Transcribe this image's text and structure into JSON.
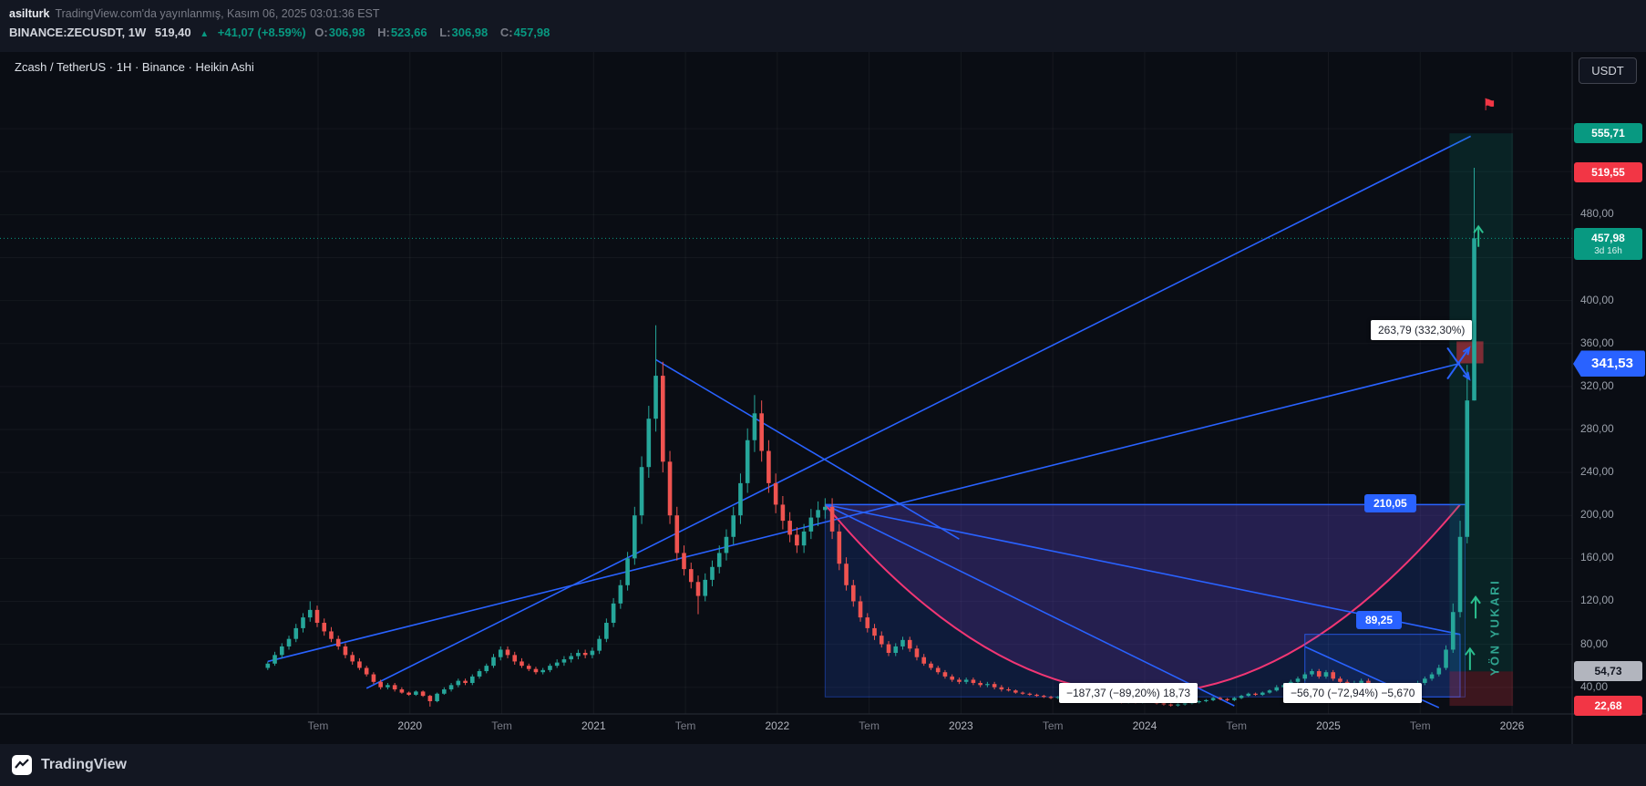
{
  "header": {
    "author": "asilturk",
    "published_text": "TradingView.com'da yayınlanmış, Kasım 06, 2025 03:01:36 EST",
    "symbol": "BINANCE:ZECUSDT, 1W",
    "last_price": "519,40",
    "up_arrow": "▲",
    "change_text": "+41,07 (+8.59%)",
    "ohlc": {
      "o_label": "O:",
      "o": "306,98",
      "h_label": "H:",
      "h": "523,66",
      "l_label": "L:",
      "l": "306,98",
      "c_label": "C:",
      "c": "457,98"
    }
  },
  "legend_title": "Zcash / TetherUS · 1H · Binance · Heikin Ashi",
  "currency_button": "USDT",
  "footer_brand": "TradingView",
  "icons": {
    "flag": "⚑"
  },
  "annotations": {
    "measure_up": "263,79 (332,30%)",
    "measure_down_left": "−187,37 (−89,20%) 18,73",
    "measure_down_right": "−56,70 (−72,94%) −5,670",
    "level_upper": "210,05",
    "level_lower": "89,25",
    "direction_label": "YÖN YUKARI"
  },
  "price_axis": {
    "ticks": [
      {
        "price": 480,
        "label": "480,00"
      },
      {
        "price": 400,
        "label": "400,00"
      },
      {
        "price": 360,
        "label": "360,00"
      },
      {
        "price": 320,
        "label": "320,00"
      },
      {
        "price": 280,
        "label": "280,00"
      },
      {
        "price": 240,
        "label": "240,00"
      },
      {
        "price": 200,
        "label": "200,00"
      },
      {
        "price": 160,
        "label": "160,00"
      },
      {
        "price": 120,
        "label": "120,00"
      },
      {
        "price": 80,
        "label": "80,00"
      },
      {
        "price": 40,
        "label": "40,00"
      }
    ],
    "badges": [
      {
        "label": "555,71",
        "price": 555.71,
        "type": "target"
      },
      {
        "label": "519,55",
        "price": 519.55,
        "type": "alert"
      },
      {
        "label": "457,98",
        "price": 457.98,
        "sub": "3d 16h",
        "type": "last"
      },
      {
        "label": "341,53",
        "price": 341.53,
        "type": "drawing"
      },
      {
        "label": "54,73",
        "price": 54.73,
        "type": "entry"
      },
      {
        "label": "22,68",
        "price": 22.68,
        "type": "stop"
      }
    ]
  },
  "time_axis": {
    "labels": [
      "Tem",
      "2020",
      "Tem",
      "2021",
      "Tem",
      "2022",
      "Tem",
      "2023",
      "Tem",
      "2024",
      "Tem",
      "2025",
      "Tem",
      "2026"
    ]
  },
  "colors": {
    "up": "#26a69a",
    "down": "#ef5350",
    "blue": "#2962ff",
    "curve": "#f23674",
    "last": "#089981",
    "alert": "#f23645",
    "entry_bg": "#b2b5be",
    "bg": "#0a0d14",
    "panel": "#131722"
  },
  "chart_data": {
    "type": "candlestick",
    "title": "ZECUSDT 1W Heikin Ashi",
    "x_unit": "2-week candles, mid-2019 to Nov 2025",
    "ylim": [
      15,
      575
    ],
    "current_price": 457.98,
    "ohlc": [
      [
        58,
        64,
        56,
        62
      ],
      [
        62,
        73,
        60,
        70
      ],
      [
        70,
        81,
        67,
        78
      ],
      [
        78,
        88,
        75,
        85
      ],
      [
        85,
        99,
        82,
        95
      ],
      [
        95,
        109,
        91,
        105
      ],
      [
        105,
        120,
        101,
        112
      ],
      [
        112,
        116,
        96,
        100
      ],
      [
        100,
        104,
        88,
        92
      ],
      [
        92,
        96,
        82,
        85
      ],
      [
        85,
        88,
        75,
        78
      ],
      [
        78,
        81,
        67,
        70
      ],
      [
        70,
        73,
        61,
        64
      ],
      [
        64,
        67,
        56,
        58
      ],
      [
        58,
        60,
        50,
        52
      ],
      [
        52,
        54,
        43,
        45
      ],
      [
        45,
        47,
        38,
        40
      ],
      [
        40,
        44,
        38,
        42
      ],
      [
        42,
        44,
        36,
        38
      ],
      [
        38,
        40,
        34,
        35
      ],
      [
        35,
        36,
        32,
        33
      ],
      [
        33,
        37,
        32,
        36
      ],
      [
        36,
        37,
        31,
        32
      ],
      [
        32,
        33,
        22,
        27
      ],
      [
        27,
        35,
        26,
        34
      ],
      [
        34,
        40,
        33,
        38
      ],
      [
        38,
        44,
        36,
        42
      ],
      [
        42,
        48,
        40,
        46
      ],
      [
        46,
        48,
        42,
        44
      ],
      [
        44,
        52,
        42,
        50
      ],
      [
        50,
        57,
        48,
        55
      ],
      [
        55,
        62,
        53,
        60
      ],
      [
        60,
        71,
        58,
        68
      ],
      [
        68,
        78,
        65,
        75
      ],
      [
        75,
        78,
        67,
        70
      ],
      [
        70,
        73,
        61,
        64
      ],
      [
        64,
        67,
        58,
        60
      ],
      [
        60,
        62,
        55,
        57
      ],
      [
        57,
        59,
        52,
        54
      ],
      [
        54,
        58,
        52,
        56
      ],
      [
        56,
        62,
        54,
        60
      ],
      [
        60,
        66,
        58,
        63
      ],
      [
        63,
        69,
        60,
        66
      ],
      [
        66,
        72,
        63,
        69
      ],
      [
        69,
        75,
        66,
        72
      ],
      [
        72,
        75,
        67,
        70
      ],
      [
        70,
        77,
        67,
        74
      ],
      [
        74,
        88,
        71,
        85
      ],
      [
        85,
        104,
        82,
        100
      ],
      [
        100,
        123,
        96,
        118
      ],
      [
        118,
        140,
        113,
        135
      ],
      [
        135,
        166,
        130,
        160
      ],
      [
        160,
        208,
        154,
        200
      ],
      [
        200,
        255,
        192,
        245
      ],
      [
        245,
        302,
        235,
        290
      ],
      [
        290,
        377,
        278,
        330
      ],
      [
        330,
        343,
        240,
        250
      ],
      [
        250,
        260,
        192,
        200
      ],
      [
        200,
        208,
        158,
        165
      ],
      [
        165,
        172,
        144,
        150
      ],
      [
        150,
        156,
        132,
        138
      ],
      [
        138,
        144,
        108,
        125
      ],
      [
        125,
        146,
        120,
        140
      ],
      [
        140,
        158,
        134,
        152
      ],
      [
        152,
        172,
        146,
        165
      ],
      [
        165,
        187,
        158,
        180
      ],
      [
        180,
        208,
        173,
        200
      ],
      [
        200,
        239,
        192,
        230
      ],
      [
        230,
        281,
        221,
        270
      ],
      [
        270,
        312,
        259,
        295
      ],
      [
        295,
        307,
        250,
        260
      ],
      [
        260,
        270,
        221,
        230
      ],
      [
        230,
        239,
        202,
        210
      ],
      [
        210,
        218,
        187,
        195
      ],
      [
        195,
        203,
        175,
        182
      ],
      [
        182,
        189,
        165,
        172
      ],
      [
        172,
        192,
        165,
        185
      ],
      [
        185,
        206,
        178,
        198
      ],
      [
        198,
        213,
        190,
        205
      ],
      [
        205,
        216,
        197,
        208
      ],
      [
        208,
        216,
        178,
        185
      ],
      [
        185,
        192,
        149,
        155
      ],
      [
        155,
        161,
        130,
        135
      ],
      [
        135,
        140,
        115,
        120
      ],
      [
        120,
        125,
        101,
        105
      ],
      [
        105,
        109,
        91,
        95
      ],
      [
        95,
        99,
        84,
        88
      ],
      [
        88,
        92,
        77,
        80
      ],
      [
        80,
        83,
        69,
        72
      ],
      [
        72,
        81,
        69,
        78
      ],
      [
        78,
        87,
        75,
        84
      ],
      [
        84,
        87,
        73,
        76
      ],
      [
        76,
        79,
        65,
        68
      ],
      [
        68,
        71,
        60,
        62
      ],
      [
        62,
        64,
        56,
        58
      ],
      [
        58,
        60,
        52,
        54
      ],
      [
        54,
        56,
        48,
        50
      ],
      [
        50,
        52,
        45,
        47
      ],
      [
        47,
        49,
        43,
        45
      ],
      [
        45,
        49,
        43,
        47
      ],
      [
        47,
        49,
        42,
        44
      ],
      [
        44,
        46,
        40,
        42
      ],
      [
        42,
        45,
        40,
        43
      ],
      [
        43,
        45,
        38,
        40
      ],
      [
        40,
        42,
        36,
        38
      ],
      [
        38,
        40,
        36,
        37
      ],
      [
        37,
        38,
        34,
        35
      ],
      [
        35,
        36,
        33,
        34
      ],
      [
        34,
        35,
        32,
        33
      ],
      [
        33,
        34,
        31,
        32
      ],
      [
        32,
        33,
        30,
        31
      ],
      [
        31,
        32,
        29,
        30
      ],
      [
        30,
        32,
        29,
        31
      ],
      [
        31,
        32,
        29,
        30
      ],
      [
        30,
        31,
        28,
        29
      ],
      [
        29,
        30,
        27,
        28
      ],
      [
        28,
        30,
        27,
        29
      ],
      [
        29,
        30,
        27,
        28
      ],
      [
        28,
        29,
        26,
        27
      ],
      [
        27,
        29,
        26,
        28
      ],
      [
        28,
        29,
        26,
        27
      ],
      [
        27,
        28,
        25,
        26
      ],
      [
        26,
        28,
        25,
        27
      ],
      [
        27,
        28,
        25,
        26
      ],
      [
        26,
        29,
        25,
        28
      ],
      [
        28,
        29,
        26,
        27
      ],
      [
        27,
        28,
        24,
        25
      ],
      [
        25,
        26,
        23,
        24
      ],
      [
        24,
        25,
        22,
        23
      ],
      [
        23,
        25,
        22,
        24
      ],
      [
        24,
        26,
        23,
        25
      ],
      [
        25,
        27,
        24,
        26
      ],
      [
        26,
        28,
        25,
        27
      ],
      [
        27,
        29,
        26,
        28
      ],
      [
        28,
        31,
        27,
        30
      ],
      [
        30,
        31,
        28,
        29
      ],
      [
        29,
        30,
        27,
        28
      ],
      [
        28,
        31,
        27,
        30
      ],
      [
        30,
        33,
        29,
        32
      ],
      [
        32,
        35,
        31,
        34
      ],
      [
        34,
        35,
        32,
        33
      ],
      [
        33,
        36,
        32,
        35
      ],
      [
        35,
        38,
        34,
        37
      ],
      [
        37,
        42,
        36,
        40
      ],
      [
        40,
        44,
        38,
        42
      ],
      [
        42,
        47,
        40,
        45
      ],
      [
        45,
        50,
        43,
        48
      ],
      [
        48,
        54,
        46,
        52
      ],
      [
        52,
        57,
        50,
        55
      ],
      [
        55,
        57,
        48,
        50
      ],
      [
        50,
        56,
        48,
        54
      ],
      [
        54,
        56,
        46,
        48
      ],
      [
        48,
        50,
        43,
        45
      ],
      [
        45,
        47,
        40,
        42
      ],
      [
        42,
        46,
        40,
        44
      ],
      [
        44,
        48,
        42,
        46
      ],
      [
        46,
        48,
        40,
        42
      ],
      [
        42,
        44,
        38,
        40
      ],
      [
        40,
        42,
        36,
        38
      ],
      [
        38,
        40,
        35,
        36
      ],
      [
        36,
        40,
        35,
        38
      ],
      [
        38,
        42,
        36,
        40
      ],
      [
        40,
        44,
        38,
        42
      ],
      [
        42,
        46,
        40,
        44
      ],
      [
        44,
        50,
        42,
        48
      ],
      [
        48,
        54,
        46,
        52
      ],
      [
        52,
        61,
        50,
        58
      ],
      [
        58,
        79,
        56,
        75
      ],
      [
        75,
        118,
        72,
        110
      ],
      [
        110,
        195,
        105,
        180
      ],
      [
        180,
        340,
        174,
        307
      ],
      [
        306.98,
        523.66,
        306.98,
        457.98
      ]
    ],
    "drawings": {
      "trendlines": [
        {
          "from": [
            14,
            39
          ],
          "to": [
            170.5,
            553
          ]
        },
        {
          "from": [
            0,
            64
          ],
          "to": [
            169,
            341.53
          ]
        },
        {
          "from": [
            55,
            345
          ],
          "to": [
            98,
            178
          ]
        },
        {
          "from": [
            79,
            210.05
          ],
          "to": [
            137,
            22.68
          ]
        },
        {
          "from": [
            79,
            210.05
          ],
          "to": [
            169,
            89.25
          ]
        },
        {
          "from": [
            147,
            77.7
          ],
          "to": [
            166,
            21
          ]
        }
      ],
      "level_line": {
        "from": [
          79,
          210.05
        ],
        "to": [
          169.7,
          210.05
        ]
      },
      "rect_main": {
        "from": [
          79,
          210.05
        ],
        "to": [
          169.7,
          31
        ]
      },
      "rect_small": {
        "from": [
          147,
          89.25
        ],
        "to": [
          169,
          31
        ]
      },
      "curve": {
        "start": [
          79,
          210.05
        ],
        "vertex": [
          124,
          34
        ],
        "end": [
          169,
          210.05
        ]
      },
      "position_long": {
        "x_from": 167.5,
        "x_to": 176.5,
        "entry": 54.73,
        "target": 555.71,
        "stop": 22.68
      },
      "risk_box": {
        "from": [
          168.5,
          362
        ],
        "to": [
          172.3,
          341.53
        ]
      },
      "up_arrows": [
        {
          "x": 171.6,
          "from": 450,
          "to": 469
        },
        {
          "x": 171.2,
          "from": 104,
          "to": 124
        },
        {
          "x": 170.4,
          "from": 56,
          "to": 76
        }
      ],
      "cross_arrows": [
        {
          "from": [
            167.2,
            327
          ],
          "to": [
            170.3,
            356
          ]
        },
        {
          "from": [
            167.2,
            356
          ],
          "to": [
            170.3,
            327
          ]
        }
      ]
    }
  }
}
